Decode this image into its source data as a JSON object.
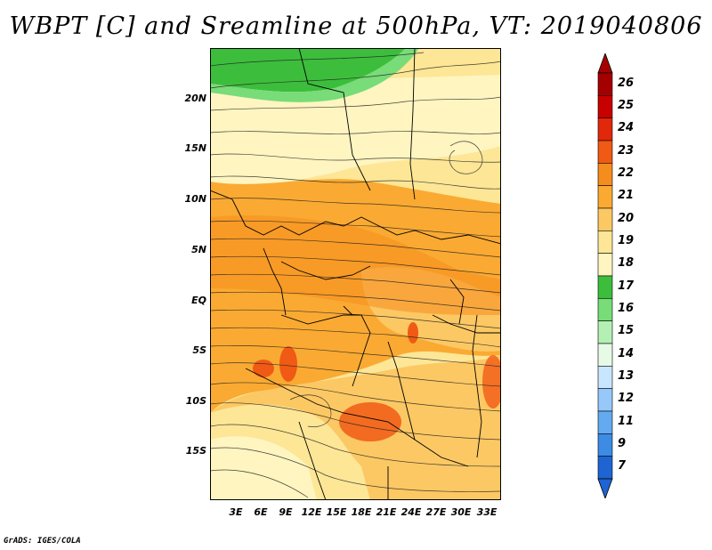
{
  "title": "WBPT [C] and Sreamline at 500hPa, VT: 2019040806",
  "credit": "GrADS: IGES/COLA",
  "y_axis_labels": [
    "20N",
    "15N",
    "10N",
    "5N",
    "EQ",
    "5S",
    "10S",
    "15S"
  ],
  "x_axis_labels": [
    "3E",
    "6E",
    "9E",
    "12E",
    "15E",
    "18E",
    "21E",
    "24E",
    "27E",
    "30E",
    "33E"
  ],
  "colorbar": {
    "labels": [
      "26",
      "25",
      "24",
      "23",
      "22",
      "21",
      "20",
      "19",
      "18",
      "17",
      "16",
      "15",
      "14",
      "13",
      "12",
      "11",
      "9",
      "7"
    ],
    "colors": [
      "#a50000",
      "#c80000",
      "#e1280a",
      "#f05a14",
      "#f58c1e",
      "#faaa32",
      "#fcc864",
      "#fde696",
      "#fff5c0",
      "#3cbe3c",
      "#78dc78",
      "#b4f0b4",
      "#e6fae6",
      "#c8e6ff",
      "#96c8fa",
      "#64aaf0",
      "#3c8ce6",
      "#1e64d2"
    ]
  },
  "map_colors": {
    "lightyellow": "#fff5c0",
    "yellow": "#fde696",
    "lightorange": "#fcc864",
    "orange": "#faaa32",
    "darkorange": "#f58c1e",
    "redorange": "#f05a14",
    "green": "#3cbe3c",
    "lightgreen": "#78dc78"
  }
}
